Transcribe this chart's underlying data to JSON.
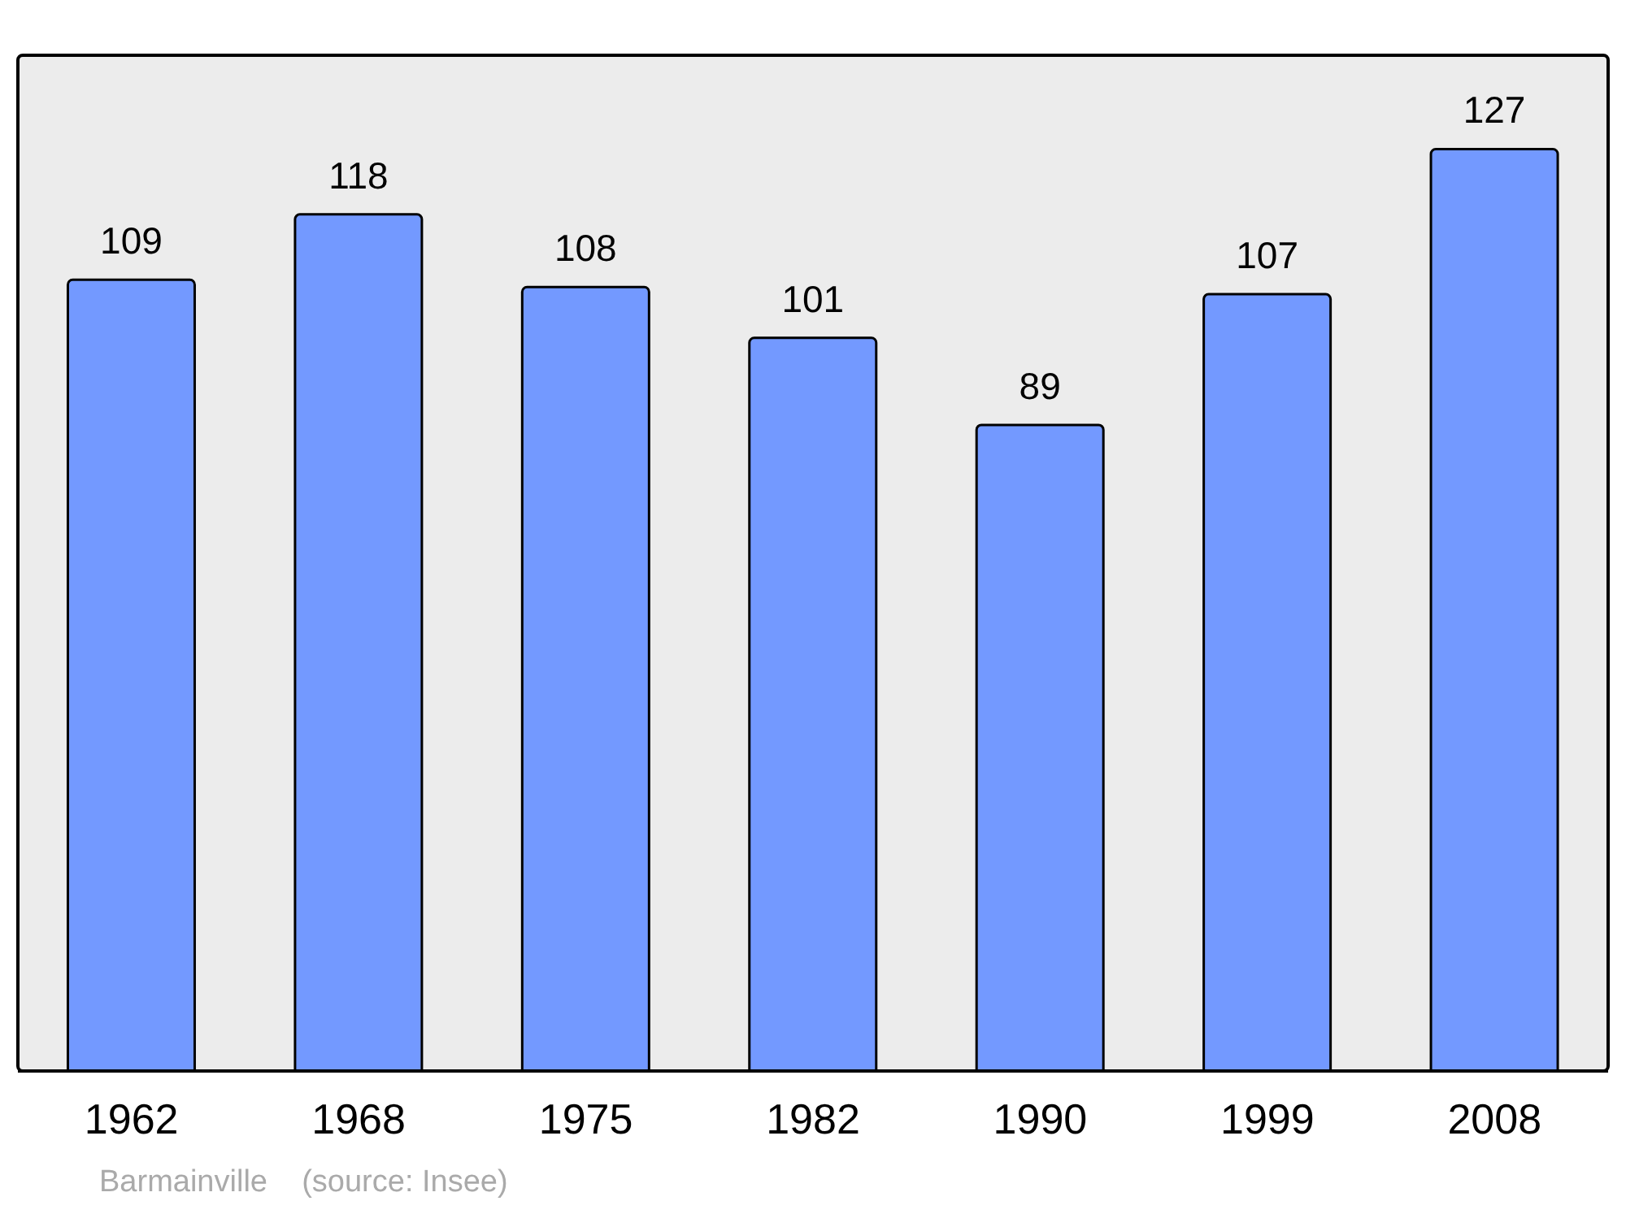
{
  "chart_data": {
    "type": "bar",
    "categories": [
      "1962",
      "1968",
      "1975",
      "1982",
      "1990",
      "1999",
      "2008"
    ],
    "values": [
      109,
      118,
      108,
      101,
      89,
      107,
      127
    ],
    "color": "#7399ff",
    "data_labels": true,
    "annotations": [
      "Barmainville    (source: Insee)"
    ]
  }
}
